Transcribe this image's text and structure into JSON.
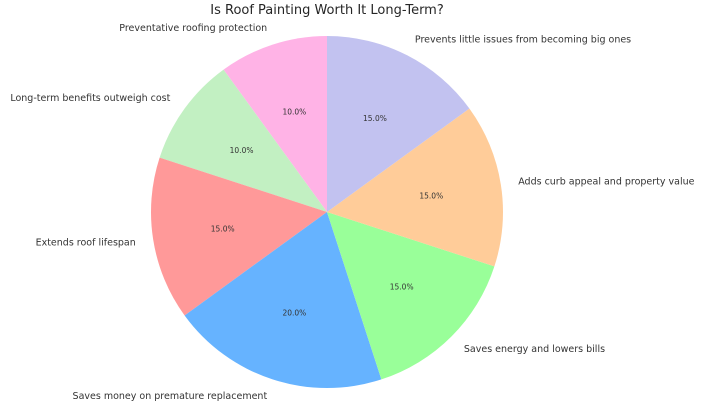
{
  "chart_data": {
    "type": "pie",
    "title": "Is Roof Painting Worth It Long-Term?",
    "start_angle_deg": 90,
    "direction": "counterclockwise",
    "value_format": "{v}%",
    "slices": [
      {
        "label": "Preventative roofing protection",
        "value": 10.0,
        "color": "#ffb3e6"
      },
      {
        "label": "Long-term benefits outweigh cost",
        "value": 10.0,
        "color": "#c2f0c2"
      },
      {
        "label": "Extends roof lifespan",
        "value": 15.0,
        "color": "#ff9999"
      },
      {
        "label": "Saves money on premature replacement",
        "value": 20.0,
        "color": "#66b3ff"
      },
      {
        "label": "Saves energy and lowers bills",
        "value": 15.0,
        "color": "#99ff99"
      },
      {
        "label": "Adds curb appeal and property value",
        "value": 15.0,
        "color": "#ffcc99"
      },
      {
        "label": "Prevents little issues from becoming big ones",
        "value": 15.0,
        "color": "#c2c2f0"
      }
    ]
  }
}
